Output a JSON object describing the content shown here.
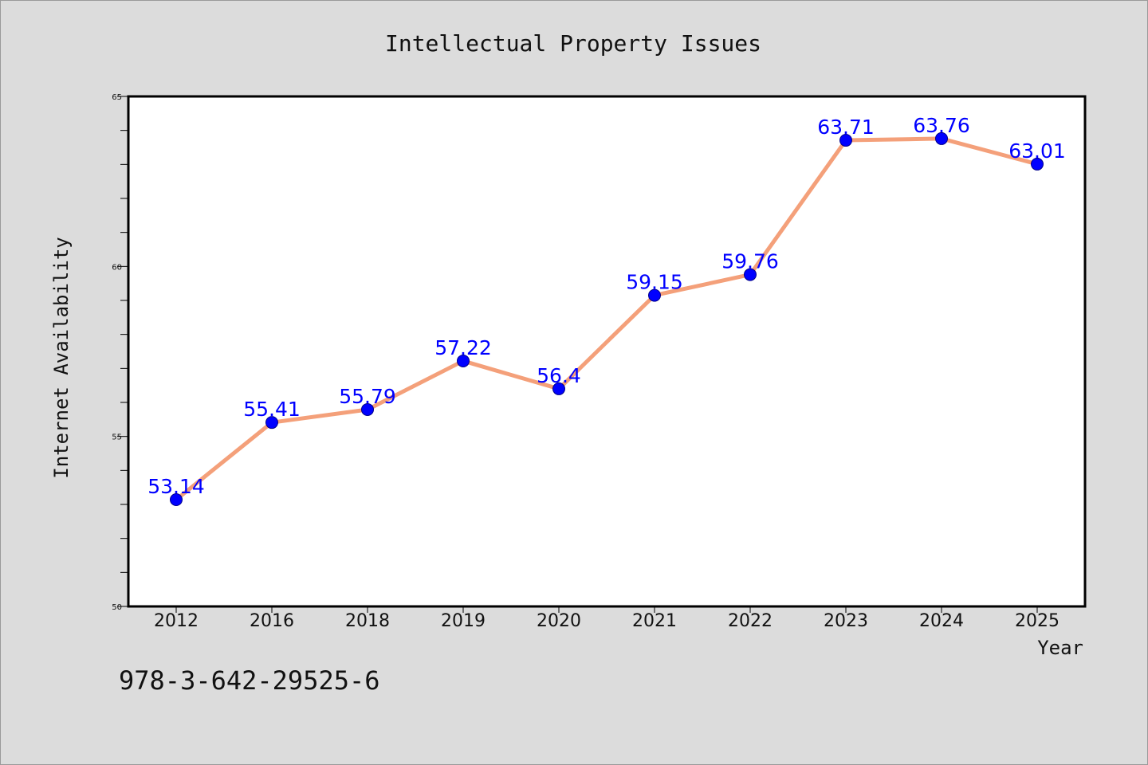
{
  "chart_data": {
    "type": "line",
    "title": "Intellectual Property Issues",
    "xlabel": "Year",
    "ylabel": "Internet Availability",
    "categories": [
      "2012",
      "2016",
      "2018",
      "2019",
      "2020",
      "2021",
      "2022",
      "2023",
      "2024",
      "2025"
    ],
    "values": [
      53.14,
      55.41,
      55.79,
      57.22,
      56.4,
      59.15,
      59.76,
      63.71,
      63.76,
      63.01
    ],
    "data_labels": [
      "53.14",
      "55.41",
      "55.79",
      "57.22",
      "56.4",
      "59.15",
      "59.76",
      "63.71",
      "63.76",
      "63.01"
    ],
    "ylim": [
      50,
      65
    ],
    "yticks": [
      "50",
      "55",
      "60",
      "65"
    ],
    "grid": false,
    "line_color": "#f4a07a",
    "marker_color": "#0000ff",
    "label_color": "#0000ff"
  },
  "annotation": "978-3-642-29525-6"
}
